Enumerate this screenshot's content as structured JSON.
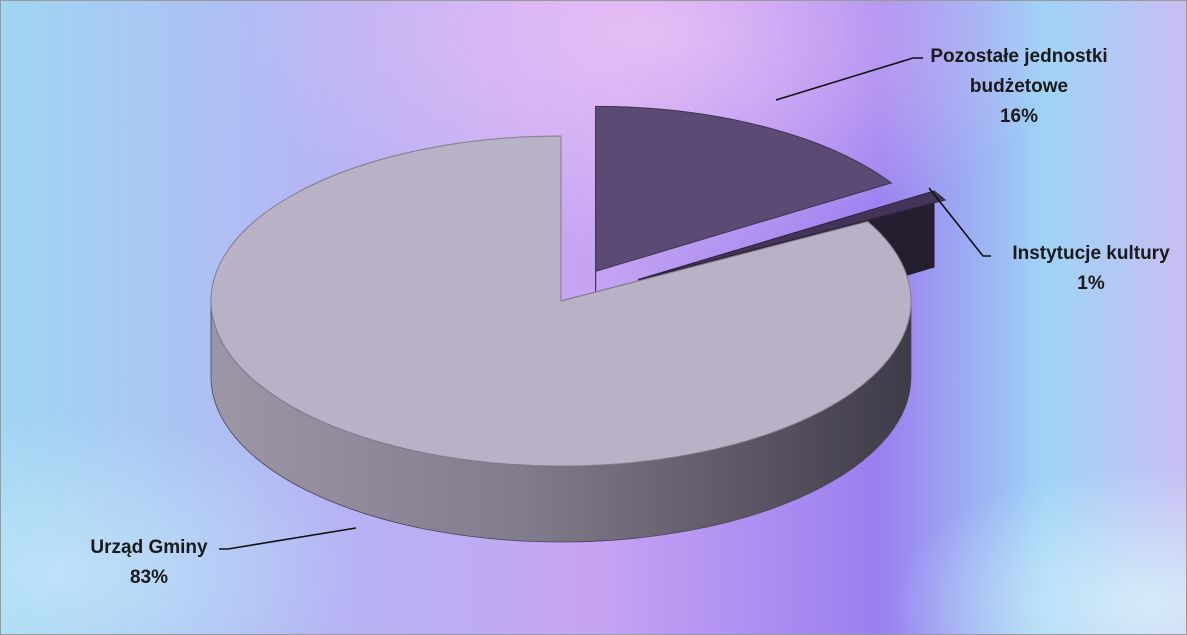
{
  "chart_data": {
    "type": "pie",
    "variant": "3d-exploded",
    "title": "",
    "slices": [
      {
        "label": "Urząd Gminy",
        "value": 83,
        "value_label": "83%",
        "color": "#b9b1c5"
      },
      {
        "label": "Pozostałe jednostki budżetowe",
        "label_lines": [
          "Pozostałe jednostki",
          "budżetowe"
        ],
        "value": 16,
        "value_label": "16%",
        "color": "#5a4a74"
      },
      {
        "label": "Instytucje kultury",
        "value": 1,
        "value_label": "1%",
        "color": "#443558"
      }
    ],
    "legend": "none"
  }
}
